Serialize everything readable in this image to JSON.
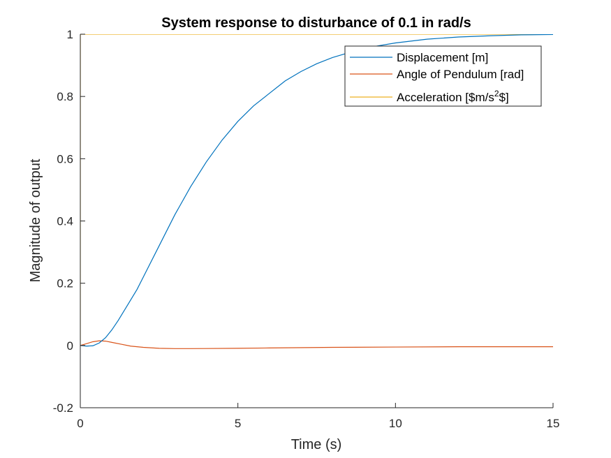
{
  "chart_data": {
    "type": "line",
    "title": "System response to disturbance of 0.1 in rad/s",
    "xlabel": "Time (s)",
    "ylabel": "Magnitude of output",
    "xlim": [
      0,
      15
    ],
    "ylim": [
      -0.2,
      1
    ],
    "xticks": [
      0,
      5,
      10,
      15
    ],
    "xtick_labels": [
      "0",
      "5",
      "10",
      "15"
    ],
    "yticks": [
      -0.2,
      0,
      0.2,
      0.4,
      0.6,
      0.8,
      1
    ],
    "ytick_labels": [
      "-0.2",
      "0",
      "0.2",
      "0.4",
      "0.6",
      "0.8",
      "1"
    ],
    "grid": false,
    "legend_position": "top-right",
    "series": [
      {
        "name": "Displacement [m]",
        "color": "#0072BD",
        "x": [
          0,
          0.2,
          0.4,
          0.6,
          0.8,
          1.0,
          1.2,
          1.5,
          1.8,
          2.0,
          2.5,
          3.0,
          3.5,
          4.0,
          4.5,
          5.0,
          5.5,
          6.0,
          6.5,
          7.0,
          7.5,
          8.0,
          9.0,
          10.0,
          11.0,
          12.0,
          13.0,
          14.0,
          15.0
        ],
        "y": [
          0,
          -0.002,
          -0.001,
          0.008,
          0.025,
          0.05,
          0.08,
          0.13,
          0.18,
          0.22,
          0.32,
          0.42,
          0.51,
          0.59,
          0.66,
          0.72,
          0.77,
          0.81,
          0.85,
          0.88,
          0.905,
          0.925,
          0.955,
          0.972,
          0.984,
          0.991,
          0.995,
          0.998,
          0.999
        ]
      },
      {
        "name": "Angle of Pendulum [rad]",
        "color": "#D95319",
        "x": [
          0,
          0.2,
          0.4,
          0.6,
          0.8,
          1.0,
          1.3,
          1.6,
          2.0,
          2.5,
          3.0,
          3.5,
          4.0,
          5.0,
          6.0,
          8.0,
          10.0,
          12.0,
          15.0
        ],
        "y": [
          0,
          0.006,
          0.012,
          0.015,
          0.014,
          0.01,
          0.004,
          -0.002,
          -0.006,
          -0.009,
          -0.01,
          -0.01,
          -0.0098,
          -0.009,
          -0.008,
          -0.006,
          -0.005,
          -0.004,
          -0.004
        ]
      },
      {
        "name": "Acceleration [$m/s^2$]",
        "legend_text": [
          "Acceleration [$m/s",
          "2",
          "$]"
        ],
        "color": "#EDB120",
        "x": [
          0,
          0.001,
          15
        ],
        "y": [
          0,
          1,
          1
        ]
      }
    ]
  }
}
